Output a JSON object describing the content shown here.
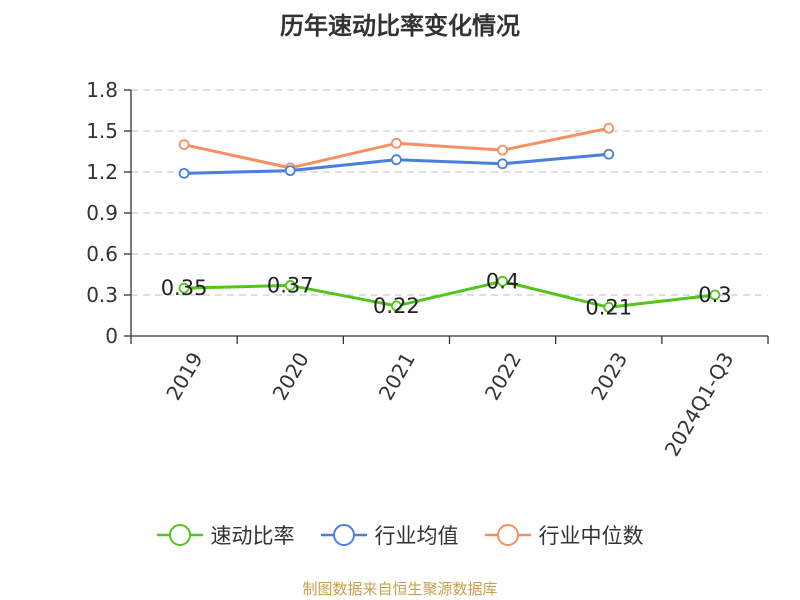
{
  "chart_data": {
    "type": "line",
    "title": "历年速动比率变化情况",
    "categories": [
      "2019",
      "2020",
      "2021",
      "2022",
      "2023",
      "2024Q1-Q3"
    ],
    "ylim": [
      0,
      1.8
    ],
    "yticks": [
      "0",
      "0.3",
      "0.6",
      "0.9",
      "1.2",
      "1.5",
      "1.8"
    ],
    "grid": true,
    "legend_position": "bottom",
    "series": [
      {
        "name": "速动比率",
        "color": "#52c41a",
        "values": [
          0.35,
          0.37,
          0.22,
          0.4,
          0.21,
          0.3
        ],
        "labels": [
          "0.35",
          "0.37",
          "0.22",
          "0.4",
          "0.21",
          "0.3"
        ]
      },
      {
        "name": "行业均值",
        "color": "#4a7fdb",
        "values": [
          1.19,
          1.21,
          1.29,
          1.26,
          1.33,
          null
        ]
      },
      {
        "name": "行业中位数",
        "color": "#f59062",
        "values": [
          1.4,
          1.23,
          1.41,
          1.36,
          1.52,
          null
        ]
      }
    ]
  },
  "source": "制图数据来自恒生聚源数据库"
}
